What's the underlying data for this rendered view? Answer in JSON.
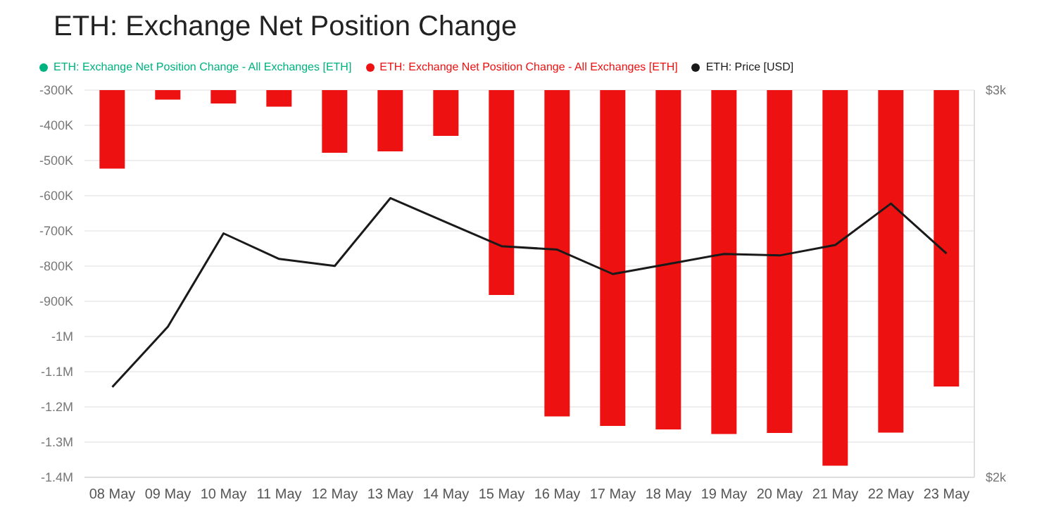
{
  "chart_data": {
    "type": "bar",
    "title": "ETH: Exchange Net Position Change",
    "categories": [
      "08 May",
      "09 May",
      "10 May",
      "11 May",
      "12 May",
      "13 May",
      "14 May",
      "15 May",
      "16 May",
      "17 May",
      "18 May",
      "19 May",
      "20 May",
      "21 May",
      "22 May",
      "23 May"
    ],
    "series": [
      {
        "name": "ETH: Exchange Net Position Change - All Exchanges [ETH]",
        "color": "#00b37e",
        "values": [
          null,
          null,
          null,
          null,
          null,
          null,
          null,
          null,
          null,
          null,
          null,
          null,
          null,
          null,
          null,
          null
        ]
      },
      {
        "name": "ETH: Exchange Net Position Change - All Exchanges [ETH]",
        "color": "#ee1111",
        "values": [
          -523000,
          -327000,
          -338000,
          -347000,
          -478000,
          -474000,
          -430000,
          -882000,
          -1227000,
          -1254000,
          -1264000,
          -1277000,
          -1274000,
          -1367000,
          -1273000,
          -1142000
        ]
      },
      {
        "name": "ETH: Price [USD]",
        "type": "line",
        "axis": "y2",
        "color": "#1a1a1a",
        "values": [
          2233,
          2389,
          2630,
          2564,
          2546,
          2721,
          2659,
          2597,
          2588,
          2525,
          2551,
          2577,
          2573,
          2600,
          2707,
          2578
        ]
      }
    ],
    "ylim": [
      -1400000,
      -300000
    ],
    "yticks": [
      {
        "value": -300000,
        "label": "-300K"
      },
      {
        "value": -400000,
        "label": "-400K"
      },
      {
        "value": -500000,
        "label": "-500K"
      },
      {
        "value": -600000,
        "label": "-600K"
      },
      {
        "value": -700000,
        "label": "-700K"
      },
      {
        "value": -800000,
        "label": "-800K"
      },
      {
        "value": -900000,
        "label": "-900K"
      },
      {
        "value": -1000000,
        "label": "-1M"
      },
      {
        "value": -1100000,
        "label": "-1.1M"
      },
      {
        "value": -1200000,
        "label": "-1.2M"
      },
      {
        "value": -1300000,
        "label": "-1.3M"
      },
      {
        "value": -1400000,
        "label": "-1.4M"
      }
    ],
    "y2lim": [
      2000,
      3000
    ],
    "y2ticks": [
      {
        "value": 2000,
        "label": "$2k"
      },
      {
        "value": 3000,
        "label": "$3k"
      }
    ],
    "grid": "y",
    "legend": "top left",
    "marker": "none"
  }
}
